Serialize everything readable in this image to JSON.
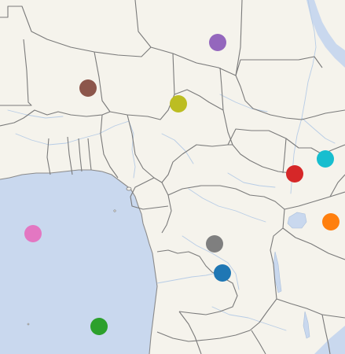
{
  "map": {
    "region": "Central Africa",
    "colors": {
      "land": "#f5f3ec",
      "ocean": "#c9d8ee",
      "border": "#7a7a7a",
      "river": "#b7cce6"
    },
    "markers": [
      {
        "id": "purple",
        "color": "#9467bd"
      },
      {
        "id": "brown",
        "color": "#8c564b"
      },
      {
        "id": "olive",
        "color": "#bcbd22"
      },
      {
        "id": "cyan",
        "color": "#17becf"
      },
      {
        "id": "red",
        "color": "#d62728"
      },
      {
        "id": "orange",
        "color": "#ff7f0e"
      },
      {
        "id": "pink",
        "color": "#e377c2"
      },
      {
        "id": "gray",
        "color": "#7f7f7f"
      },
      {
        "id": "blue",
        "color": "#1f77b4"
      },
      {
        "id": "green",
        "color": "#2ca02c"
      }
    ]
  }
}
